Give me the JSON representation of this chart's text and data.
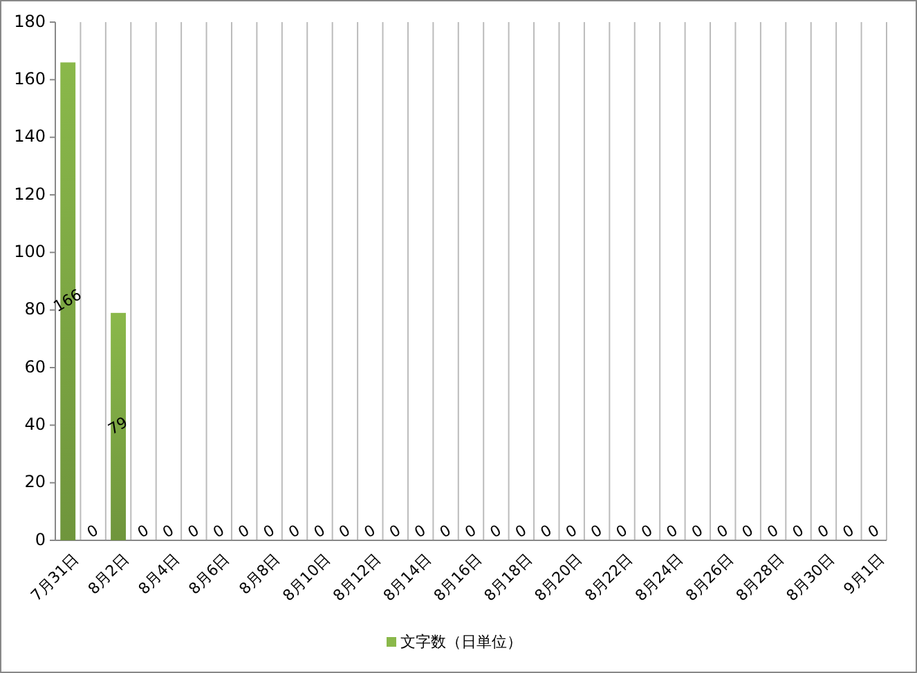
{
  "chart_data": {
    "type": "bar",
    "categories": [
      "7月31日",
      null,
      "8月2日",
      null,
      "8月4日",
      null,
      "8月6日",
      null,
      "8月8日",
      null,
      "8月10日",
      null,
      "8月12日",
      null,
      "8月14日",
      null,
      "8月16日",
      null,
      "8月18日",
      null,
      "8月20日",
      null,
      "8月22日",
      null,
      "8月24日",
      null,
      "8月26日",
      null,
      "8月28日",
      null,
      "8月30日",
      null,
      "9月1日"
    ],
    "series": [
      {
        "name": "文字数（日単位）",
        "color": "#8ab84a",
        "values": [
          166,
          0,
          79,
          0,
          0,
          0,
          0,
          0,
          0,
          0,
          0,
          0,
          0,
          0,
          0,
          0,
          0,
          0,
          0,
          0,
          0,
          0,
          0,
          0,
          0,
          0,
          0,
          0,
          0,
          0,
          0,
          0,
          0
        ]
      }
    ],
    "ylim": [
      0,
      180
    ],
    "yticks": [
      0,
      20,
      40,
      60,
      80,
      100,
      120,
      140,
      160,
      180
    ],
    "grid": "x",
    "legend": "bottom",
    "data_labels": true
  }
}
